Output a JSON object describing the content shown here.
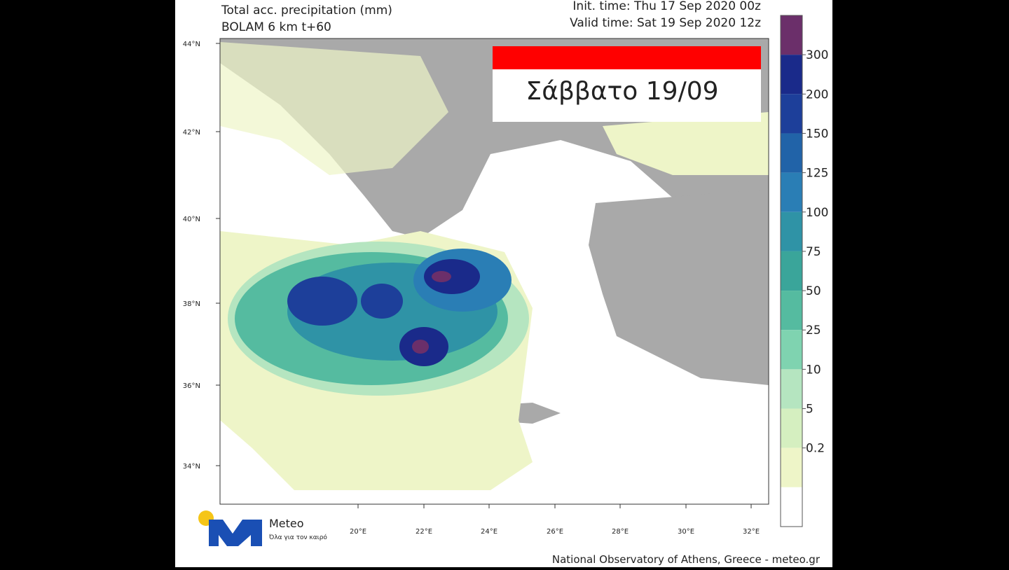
{
  "header": {
    "title": "Total acc. precipitation (mm)",
    "model": "BOLAM 6 km t+60",
    "init_time": "Init. time: Thu 17 Sep 2020 00z",
    "valid_time": "Valid time: Sat 19 Sep 2020 12z"
  },
  "banner": {
    "day": "Σάββατο 19/09"
  },
  "map": {
    "lat_labels": [
      "44°N",
      "42°N",
      "40°N",
      "38°N",
      "36°N",
      "34°N"
    ],
    "lon_labels": [
      "20°E",
      "22°E",
      "24°E",
      "26°E",
      "28°E",
      "30°E",
      "32°E"
    ]
  },
  "legend": {
    "labels": [
      "300",
      "200",
      "150",
      "125",
      "100",
      "75",
      "50",
      "25",
      "10",
      "5",
      "0.2"
    ]
  },
  "logo": {
    "name": "Meteo",
    "tagline": "Όλα για τον καιρό"
  },
  "footer": {
    "credit": "National Observatory of Athens, Greece - meteo.gr"
  }
}
